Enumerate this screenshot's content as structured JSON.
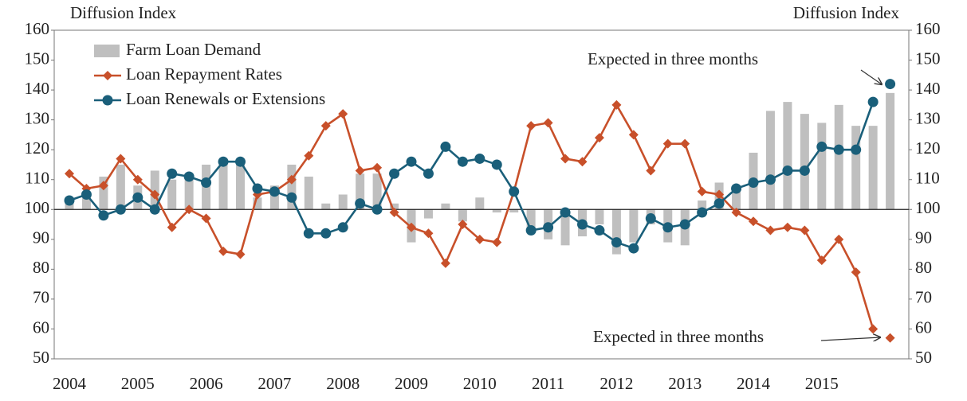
{
  "chart_data": {
    "type": "bar-line",
    "y_label_left": "Diffusion Index",
    "y_label_right": "Diffusion Index",
    "categories": [
      "2004",
      null,
      null,
      null,
      "2005",
      null,
      null,
      null,
      "2006",
      null,
      null,
      null,
      "2007",
      null,
      null,
      null,
      "2008",
      null,
      null,
      null,
      "2009",
      null,
      null,
      null,
      "2010",
      null,
      null,
      null,
      "2011",
      null,
      null,
      null,
      "2012",
      null,
      null,
      null,
      "2013",
      null,
      null,
      null,
      "2014",
      null,
      null,
      null,
      "2015",
      null,
      null,
      null,
      null
    ],
    "series": [
      {
        "name": "Farm Loan Demand",
        "type": "bar",
        "color": "#bfbfbf",
        "values": [
          102,
          104,
          111,
          115,
          108,
          113,
          110,
          112,
          115,
          117,
          116,
          104,
          108,
          115,
          111,
          102,
          105,
          112,
          112,
          102,
          89,
          97,
          102,
          96,
          104,
          99,
          99,
          92,
          90,
          88,
          91,
          95,
          85,
          89,
          95,
          89,
          88,
          103,
          109,
          107,
          119,
          133,
          136,
          132,
          129,
          135,
          128,
          128,
          139
        ]
      },
      {
        "name": "Loan Repayment Rates",
        "type": "line",
        "marker": "diamond",
        "color": "#c8502a",
        "values": [
          112,
          107,
          108,
          117,
          110,
          105,
          94,
          100,
          97,
          86,
          85,
          105,
          106,
          110,
          118,
          128,
          132,
          113,
          114,
          99,
          94,
          92,
          82,
          95,
          90,
          89,
          106,
          128,
          129,
          117,
          116,
          124,
          135,
          125,
          113,
          122,
          122,
          106,
          105,
          99,
          96,
          93,
          94,
          93,
          83,
          90,
          79,
          60,
          57
        ]
      },
      {
        "name": "Loan Renewals or Extensions",
        "type": "line",
        "marker": "circle",
        "color": "#1a5f7a",
        "values": [
          103,
          105,
          98,
          100,
          104,
          100,
          112,
          111,
          109,
          116,
          116,
          107,
          106,
          104,
          92,
          92,
          94,
          102,
          100,
          112,
          116,
          112,
          121,
          116,
          117,
          115,
          106,
          93,
          94,
          99,
          95,
          93,
          89,
          87,
          97,
          94,
          95,
          99,
          102,
          107,
          109,
          110,
          113,
          113,
          121,
          120,
          120,
          136,
          142
        ]
      }
    ],
    "baseline": 100,
    "ylim": [
      50,
      160
    ],
    "yticks": [
      50,
      60,
      70,
      80,
      90,
      100,
      110,
      120,
      130,
      140,
      150,
      160
    ],
    "annotations": [
      "Expected in three months",
      "Expected in three months"
    ],
    "legend": "upper left"
  }
}
